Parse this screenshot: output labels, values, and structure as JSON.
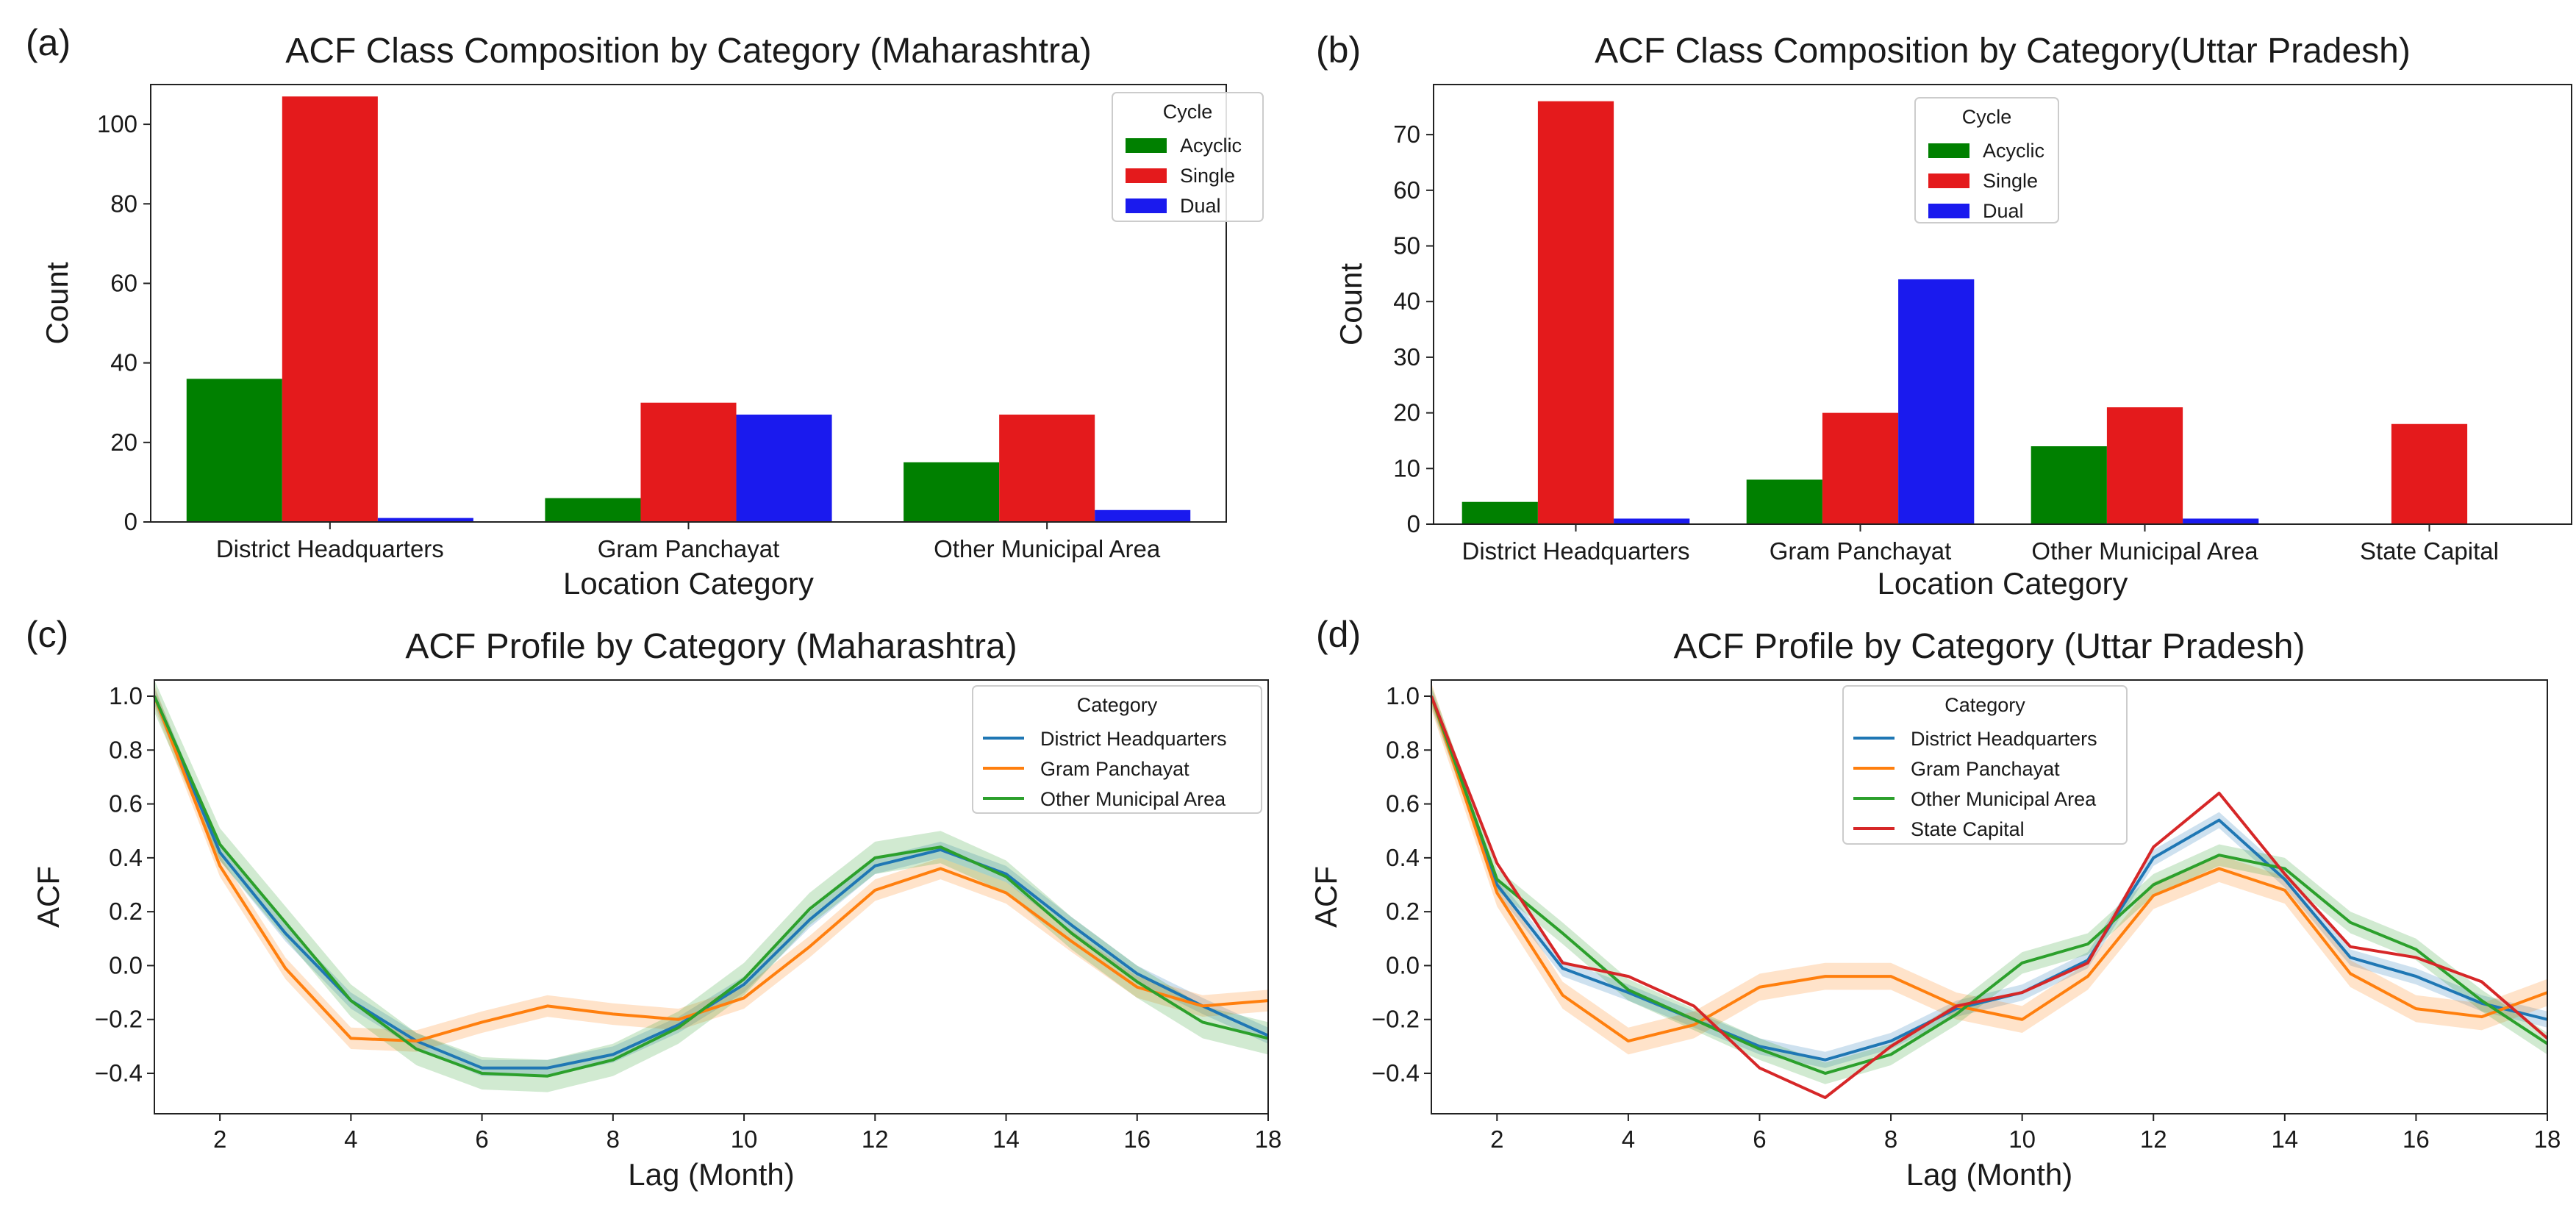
{
  "chart_data": [
    {
      "id": "a",
      "panel_label": "(a)",
      "type": "bar",
      "title": "ACF Class Composition by Category (Maharashtra)",
      "xlabel": "Location Category",
      "ylabel": "Count",
      "ylim": [
        0,
        110
      ],
      "yticks": [
        0,
        20,
        40,
        60,
        80,
        100
      ],
      "categories": [
        "District Headquarters",
        "Gram Panchayat",
        "Other Municipal Area"
      ],
      "legend_title": "Cycle",
      "legend_position": "top-right",
      "series": [
        {
          "name": "Acyclic",
          "color": "#008000",
          "values": [
            36,
            6,
            15
          ]
        },
        {
          "name": "Single",
          "color": "#e41a1c",
          "values": [
            107,
            30,
            27
          ]
        },
        {
          "name": "Dual",
          "color": "#1a1aee",
          "values": [
            1,
            27,
            3
          ]
        }
      ]
    },
    {
      "id": "b",
      "panel_label": "(b)",
      "type": "bar",
      "title": "ACF Class Composition by Category(Uttar Pradesh)",
      "xlabel": "Location Category",
      "ylabel": "Count",
      "ylim": [
        0,
        79
      ],
      "yticks": [
        0,
        10,
        20,
        30,
        40,
        50,
        60,
        70
      ],
      "categories": [
        "District Headquarters",
        "Gram Panchayat",
        "Other Municipal Area",
        "State Capital"
      ],
      "legend_title": "Cycle",
      "legend_position": "top-center",
      "series": [
        {
          "name": "Acyclic",
          "color": "#008000",
          "values": [
            4,
            8,
            14,
            0
          ]
        },
        {
          "name": "Single",
          "color": "#e41a1c",
          "values": [
            76,
            20,
            21,
            18
          ]
        },
        {
          "name": "Dual",
          "color": "#1a1aee",
          "values": [
            1,
            44,
            1,
            0
          ]
        }
      ]
    },
    {
      "id": "c",
      "panel_label": "(c)",
      "type": "line",
      "title": "ACF Profile by Category (Maharashtra)",
      "xlabel": "Lag (Month)",
      "ylabel": "ACF",
      "xlim": [
        1,
        18
      ],
      "ylim": [
        -0.55,
        1.06
      ],
      "xticks": [
        2,
        4,
        6,
        8,
        10,
        12,
        14,
        16,
        18
      ],
      "yticks": [
        -0.4,
        -0.2,
        0.0,
        0.2,
        0.4,
        0.6,
        0.8,
        1.0
      ],
      "ytick_labels": [
        "−0.4",
        "−0.2",
        "0.0",
        "0.2",
        "0.4",
        "0.6",
        "0.8",
        "1.0"
      ],
      "legend_title": "Category",
      "legend_position": "top-right",
      "x": [
        1,
        2,
        3,
        4,
        5,
        6,
        7,
        8,
        9,
        10,
        11,
        12,
        13,
        14,
        15,
        16,
        17,
        18
      ],
      "series": [
        {
          "name": "District Headquarters",
          "color": "#1f77b4",
          "band": 0.03,
          "values": [
            1.0,
            0.42,
            0.12,
            -0.13,
            -0.28,
            -0.38,
            -0.38,
            -0.33,
            -0.22,
            -0.07,
            0.17,
            0.37,
            0.43,
            0.34,
            0.15,
            -0.03,
            -0.15,
            -0.26
          ]
        },
        {
          "name": "Gram Panchayat",
          "color": "#ff7f0e",
          "band": 0.04,
          "values": [
            1.0,
            0.37,
            -0.01,
            -0.27,
            -0.28,
            -0.21,
            -0.15,
            -0.18,
            -0.2,
            -0.12,
            0.07,
            0.28,
            0.36,
            0.27,
            0.09,
            -0.08,
            -0.15,
            -0.13
          ]
        },
        {
          "name": "Other Municipal Area",
          "color": "#2ca02c",
          "band": 0.06,
          "values": [
            1.0,
            0.45,
            0.16,
            -0.13,
            -0.31,
            -0.4,
            -0.41,
            -0.35,
            -0.23,
            -0.05,
            0.21,
            0.4,
            0.44,
            0.33,
            0.12,
            -0.06,
            -0.21,
            -0.27
          ]
        }
      ]
    },
    {
      "id": "d",
      "panel_label": "(d)",
      "type": "line",
      "title": "ACF Profile by Category (Uttar Pradesh)",
      "xlabel": "Lag (Month)",
      "ylabel": "ACF",
      "xlim": [
        1,
        18
      ],
      "ylim": [
        -0.55,
        1.06
      ],
      "xticks": [
        2,
        4,
        6,
        8,
        10,
        12,
        14,
        16,
        18
      ],
      "yticks": [
        -0.4,
        -0.2,
        0.0,
        0.2,
        0.4,
        0.6,
        0.8,
        1.0
      ],
      "ytick_labels": [
        "−0.4",
        "−0.2",
        "0.0",
        "0.2",
        "0.4",
        "0.6",
        "0.8",
        "1.0"
      ],
      "legend_title": "Category",
      "legend_position": "top-center",
      "x": [
        1,
        2,
        3,
        4,
        5,
        6,
        7,
        8,
        9,
        10,
        11,
        12,
        13,
        14,
        15,
        16,
        17,
        18
      ],
      "series": [
        {
          "name": "District Headquarters",
          "color": "#1f77b4",
          "band": 0.03,
          "values": [
            1.0,
            0.3,
            -0.01,
            -0.1,
            -0.2,
            -0.3,
            -0.35,
            -0.28,
            -0.16,
            -0.1,
            0.02,
            0.4,
            0.54,
            0.32,
            0.03,
            -0.04,
            -0.14,
            -0.2
          ]
        },
        {
          "name": "Gram Panchayat",
          "color": "#ff7f0e",
          "band": 0.05,
          "values": [
            1.0,
            0.27,
            -0.11,
            -0.28,
            -0.22,
            -0.08,
            -0.04,
            -0.04,
            -0.15,
            -0.2,
            -0.04,
            0.26,
            0.36,
            0.28,
            -0.03,
            -0.16,
            -0.19,
            -0.1
          ]
        },
        {
          "name": "Other Municipal Area",
          "color": "#2ca02c",
          "band": 0.04,
          "values": [
            1.0,
            0.32,
            0.12,
            -0.09,
            -0.2,
            -0.31,
            -0.4,
            -0.33,
            -0.18,
            0.01,
            0.08,
            0.3,
            0.41,
            0.36,
            0.16,
            0.06,
            -0.13,
            -0.29
          ]
        },
        {
          "name": "State Capital",
          "color": "#d62728",
          "band": 0.0,
          "values": [
            1.0,
            0.38,
            0.01,
            -0.04,
            -0.15,
            -0.38,
            -0.49,
            -0.3,
            -0.15,
            -0.1,
            0.01,
            0.44,
            0.64,
            0.34,
            0.07,
            0.03,
            -0.06,
            -0.27
          ]
        }
      ]
    }
  ]
}
